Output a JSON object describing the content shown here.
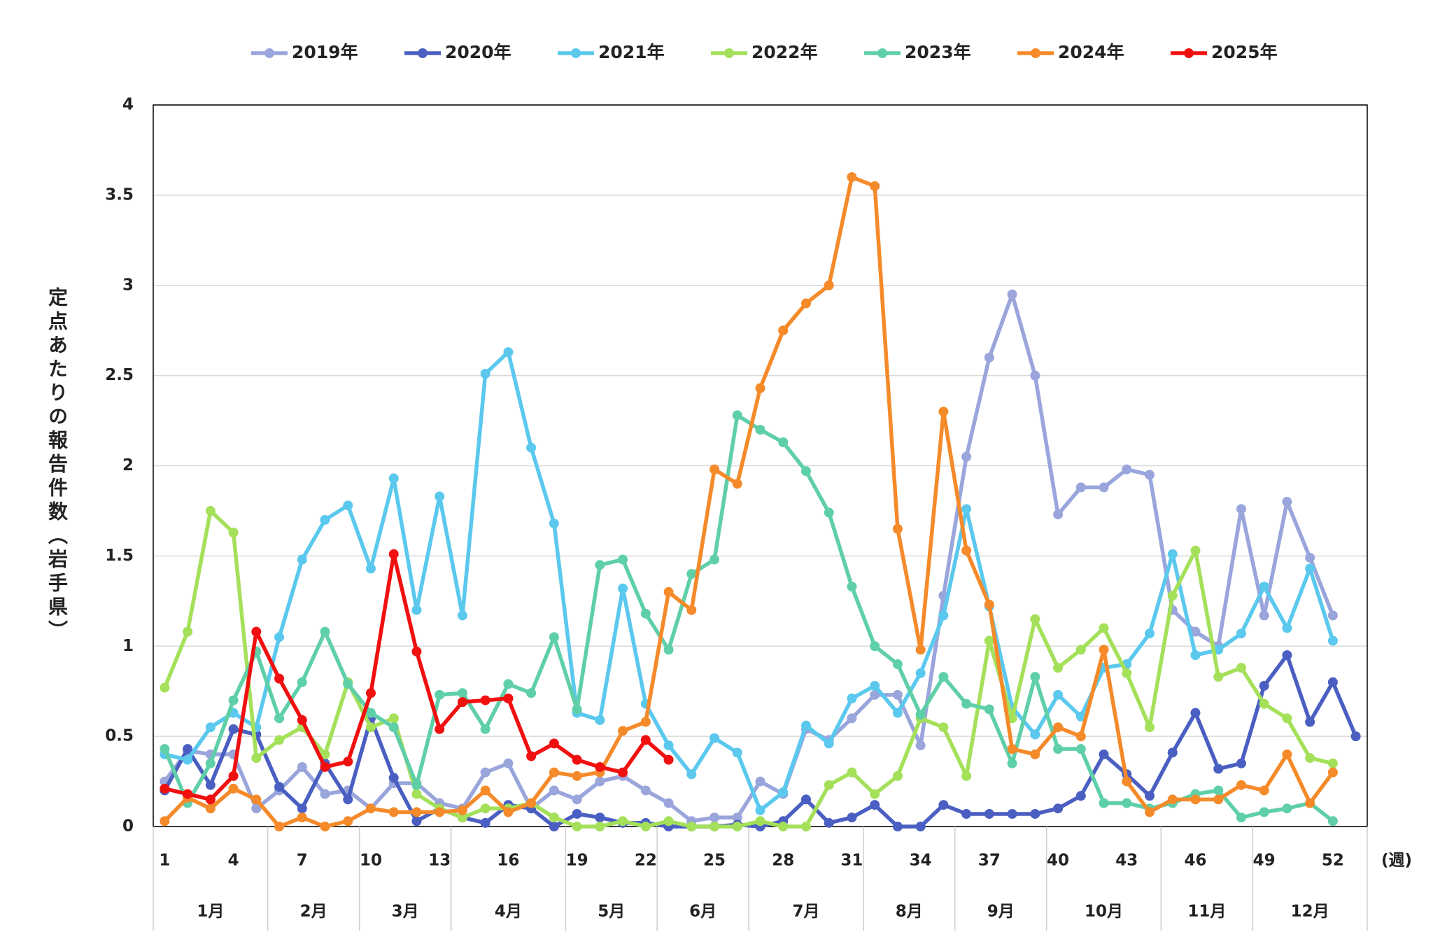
{
  "chart_data": {
    "type": "line",
    "y_label": "定点あたりの報告件数（岩手県）",
    "x_label": "(週)",
    "x": [
      1,
      2,
      3,
      4,
      5,
      6,
      7,
      8,
      9,
      10,
      11,
      12,
      13,
      14,
      15,
      16,
      17,
      18,
      19,
      20,
      21,
      22,
      23,
      24,
      25,
      26,
      27,
      28,
      29,
      30,
      31,
      32,
      33,
      34,
      35,
      36,
      37,
      38,
      39,
      40,
      41,
      42,
      43,
      44,
      45,
      46,
      47,
      48,
      49,
      50,
      51,
      52,
      53
    ],
    "xlim": [
      0.5,
      53.5
    ],
    "xticks": [
      1,
      4,
      7,
      10,
      13,
      16,
      19,
      22,
      25,
      28,
      31,
      34,
      37,
      40,
      43,
      46,
      49,
      52
    ],
    "ylim": [
      0,
      4
    ],
    "yticks": [
      0,
      0.5,
      1,
      1.5,
      2,
      2.5,
      3,
      3.5,
      4
    ],
    "grid": true,
    "legend": "top",
    "months": [
      {
        "label": "1月",
        "start": 0.5,
        "end": 5.5
      },
      {
        "label": "2月",
        "start": 5.5,
        "end": 9.5
      },
      {
        "label": "3月",
        "start": 9.5,
        "end": 13.5
      },
      {
        "label": "4月",
        "start": 13.5,
        "end": 18.5
      },
      {
        "label": "5月",
        "start": 18.5,
        "end": 22.5
      },
      {
        "label": "6月",
        "start": 22.5,
        "end": 26.5
      },
      {
        "label": "7月",
        "start": 26.5,
        "end": 31.5
      },
      {
        "label": "8月",
        "start": 31.5,
        "end": 35.5
      },
      {
        "label": "9月",
        "start": 35.5,
        "end": 39.5
      },
      {
        "label": "10月",
        "start": 39.5,
        "end": 44.5
      },
      {
        "label": "11月",
        "start": 44.5,
        "end": 48.5
      },
      {
        "label": "12月",
        "start": 48.5,
        "end": 53.5
      }
    ],
    "series": [
      {
        "name": "2019年",
        "color": "#9aa5dc",
        "values": [
          0.25,
          0.42,
          0.4,
          0.4,
          0.1,
          0.2,
          0.33,
          0.18,
          0.2,
          0.1,
          0.24,
          0.24,
          0.13,
          0.1,
          0.3,
          0.35,
          0.1,
          0.2,
          0.15,
          0.25,
          0.28,
          0.2,
          0.13,
          0.03,
          0.05,
          0.05,
          0.25,
          0.18,
          0.54,
          0.48,
          0.6,
          0.73,
          0.73,
          0.45,
          1.28,
          2.05,
          2.6,
          2.95,
          2.5,
          1.73,
          1.88,
          1.88,
          1.98,
          1.95,
          1.2,
          1.08,
          1.0,
          1.76,
          1.17,
          1.8,
          1.49,
          1.17,
          null
        ]
      },
      {
        "name": "2020年",
        "color": "#4a5fc1",
        "values": [
          0.2,
          0.43,
          0.23,
          0.54,
          0.51,
          0.22,
          0.1,
          0.35,
          0.15,
          0.6,
          0.27,
          0.03,
          0.1,
          0.05,
          0.02,
          0.12,
          0.1,
          0.0,
          0.07,
          0.05,
          0.02,
          0.02,
          0.0,
          0.0,
          0.0,
          0.01,
          0.0,
          0.03,
          0.15,
          0.02,
          0.05,
          0.12,
          0.0,
          0.0,
          0.12,
          0.07,
          0.07,
          0.07,
          0.07,
          0.1,
          0.17,
          0.4,
          0.29,
          0.17,
          0.41,
          0.63,
          0.32,
          0.35,
          0.78,
          0.95,
          0.58,
          0.8,
          0.5
        ]
      },
      {
        "name": "2021年",
        "color": "#5bc8ee",
        "values": [
          0.4,
          0.37,
          0.55,
          0.63,
          0.55,
          1.05,
          1.48,
          1.7,
          1.78,
          1.43,
          1.93,
          1.2,
          1.83,
          1.17,
          2.51,
          2.63,
          2.1,
          1.68,
          0.63,
          0.59,
          1.32,
          0.68,
          0.45,
          0.29,
          0.49,
          0.41,
          0.09,
          0.19,
          0.56,
          0.46,
          0.71,
          0.78,
          0.63,
          0.85,
          1.17,
          1.76,
          1.22,
          0.66,
          0.51,
          0.73,
          0.61,
          0.88,
          0.9,
          1.07,
          1.51,
          0.95,
          0.98,
          1.07,
          1.33,
          1.1,
          1.43,
          1.03,
          null
        ]
      },
      {
        "name": "2022年",
        "color": "#a4e05a",
        "values": [
          0.77,
          1.08,
          1.75,
          1.63,
          0.38,
          0.48,
          0.55,
          0.4,
          0.8,
          0.55,
          0.6,
          0.18,
          0.1,
          0.05,
          0.1,
          0.1,
          0.13,
          0.05,
          0.0,
          0.0,
          0.03,
          0.0,
          0.03,
          0.0,
          0.0,
          0.0,
          0.03,
          0.0,
          0.0,
          0.23,
          0.3,
          0.18,
          0.28,
          0.6,
          0.55,
          0.28,
          1.03,
          0.6,
          1.15,
          0.88,
          0.98,
          1.1,
          0.85,
          0.55,
          1.28,
          1.53,
          0.83,
          0.88,
          0.68,
          0.6,
          0.38,
          0.35,
          null
        ]
      },
      {
        "name": "2023年",
        "color": "#5fcfa8",
        "values": [
          0.43,
          0.13,
          0.35,
          0.7,
          0.97,
          0.6,
          0.8,
          1.08,
          0.79,
          0.63,
          0.55,
          0.23,
          0.73,
          0.74,
          0.54,
          0.79,
          0.74,
          1.05,
          0.65,
          1.45,
          1.48,
          1.18,
          0.98,
          1.4,
          1.48,
          2.28,
          2.2,
          2.13,
          1.97,
          1.74,
          1.33,
          1.0,
          0.9,
          0.62,
          0.83,
          0.68,
          0.65,
          0.35,
          0.83,
          0.43,
          0.43,
          0.13,
          0.13,
          0.1,
          0.13,
          0.18,
          0.2,
          0.05,
          0.08,
          0.1,
          0.13,
          0.03,
          null
        ]
      },
      {
        "name": "2024年",
        "color": "#f58a2a",
        "values": [
          0.03,
          0.16,
          0.1,
          0.21,
          0.15,
          0.0,
          0.05,
          0.0,
          0.03,
          0.1,
          0.08,
          0.08,
          0.08,
          0.09,
          0.2,
          0.08,
          0.13,
          0.3,
          0.28,
          0.3,
          0.53,
          0.58,
          1.3,
          1.2,
          1.98,
          1.9,
          2.43,
          2.75,
          2.9,
          3.0,
          3.6,
          3.55,
          1.65,
          0.98,
          2.3,
          1.53,
          1.23,
          0.43,
          0.4,
          0.55,
          0.5,
          0.98,
          0.25,
          0.08,
          0.15,
          0.15,
          0.15,
          0.23,
          0.2,
          0.4,
          0.13,
          0.3,
          null
        ]
      },
      {
        "name": "2025年",
        "color": "#f01010",
        "values": [
          0.21,
          0.18,
          0.15,
          0.28,
          1.08,
          0.82,
          0.59,
          0.33,
          0.36,
          0.74,
          1.51,
          0.97,
          0.54,
          0.69,
          0.7,
          0.71,
          0.39,
          0.46,
          0.37,
          0.33,
          0.3,
          0.48,
          0.37,
          null,
          null,
          null,
          null,
          null,
          null,
          null,
          null,
          null,
          null,
          null,
          null,
          null,
          null,
          null,
          null,
          null,
          null,
          null,
          null,
          null,
          null,
          null,
          null,
          null,
          null,
          null,
          null,
          null,
          null
        ]
      }
    ]
  }
}
